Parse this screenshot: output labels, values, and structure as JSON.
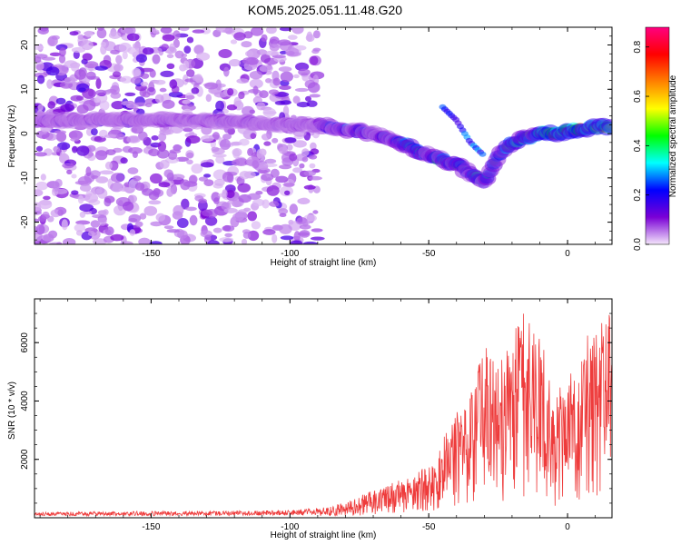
{
  "title": "KOM5.2025.051.11.48.G20",
  "chart_data": [
    {
      "type": "heatmap",
      "xlabel": "Height of straight line (km)",
      "ylabel": "Frequency (Hz)",
      "xlim": [
        -192,
        16
      ],
      "ylim": [
        -25,
        24
      ],
      "xticks": [
        -150,
        -100,
        -50,
        0
      ],
      "yticks": [
        -20,
        -10,
        0,
        10,
        20
      ],
      "colorbar": {
        "label": "Normalized spectral amplitude",
        "range": [
          0.0,
          0.88
        ],
        "ticks": [
          0.0,
          0.2,
          0.4,
          0.6,
          0.8
        ],
        "colormap": [
          "#f4e6fb",
          "#7a00d6",
          "#0000ff",
          "#00ffff",
          "#00ff00",
          "#ffff00",
          "#ff8000",
          "#ff0000",
          "#ff0080"
        ]
      },
      "ridge": {
        "x": [
          -190,
          -175,
          -160,
          -145,
          -130,
          -115,
          -100,
          -90,
          -80,
          -70,
          -60,
          -50,
          -45,
          -40,
          -35,
          -30,
          -25,
          -20,
          -15,
          -10,
          -5,
          0,
          10,
          16
        ],
        "y": [
          3,
          3,
          3,
          3,
          3,
          2.5,
          2,
          2,
          1,
          0,
          -2,
          -5,
          -6,
          -7,
          -9,
          -11,
          -5,
          -2,
          -1,
          0,
          0,
          0.5,
          1.5,
          1.5
        ]
      },
      "noise_region": {
        "x_max": -90,
        "y_range": [
          -25,
          24
        ]
      },
      "secondary_branch": {
        "x": [
          -45,
          -40,
          -35,
          -30
        ],
        "y": [
          6,
          3,
          -2,
          -5
        ]
      }
    },
    {
      "type": "line",
      "xlabel": "Height of straight line (km)",
      "ylabel": "SNR (10 * v/v)",
      "xlim": [
        -192,
        16
      ],
      "ylim": [
        0,
        7500
      ],
      "xticks": [
        -150,
        -100,
        -50,
        0
      ],
      "yticks": [
        2000,
        4000,
        6000
      ],
      "color": "#ee3b3b",
      "envelope": {
        "x": [
          -192,
          -150,
          -120,
          -100,
          -90,
          -80,
          -70,
          -60,
          -50,
          -40,
          -35,
          -30,
          -25,
          -20,
          -15,
          -10,
          -5,
          0,
          5,
          10,
          16
        ],
        "y": [
          150,
          170,
          180,
          200,
          260,
          450,
          800,
          1100,
          1500,
          3000,
          3500,
          5000,
          4500,
          5200,
          6000,
          5500,
          3500,
          4000,
          5000,
          5500,
          6000
        ]
      }
    }
  ]
}
